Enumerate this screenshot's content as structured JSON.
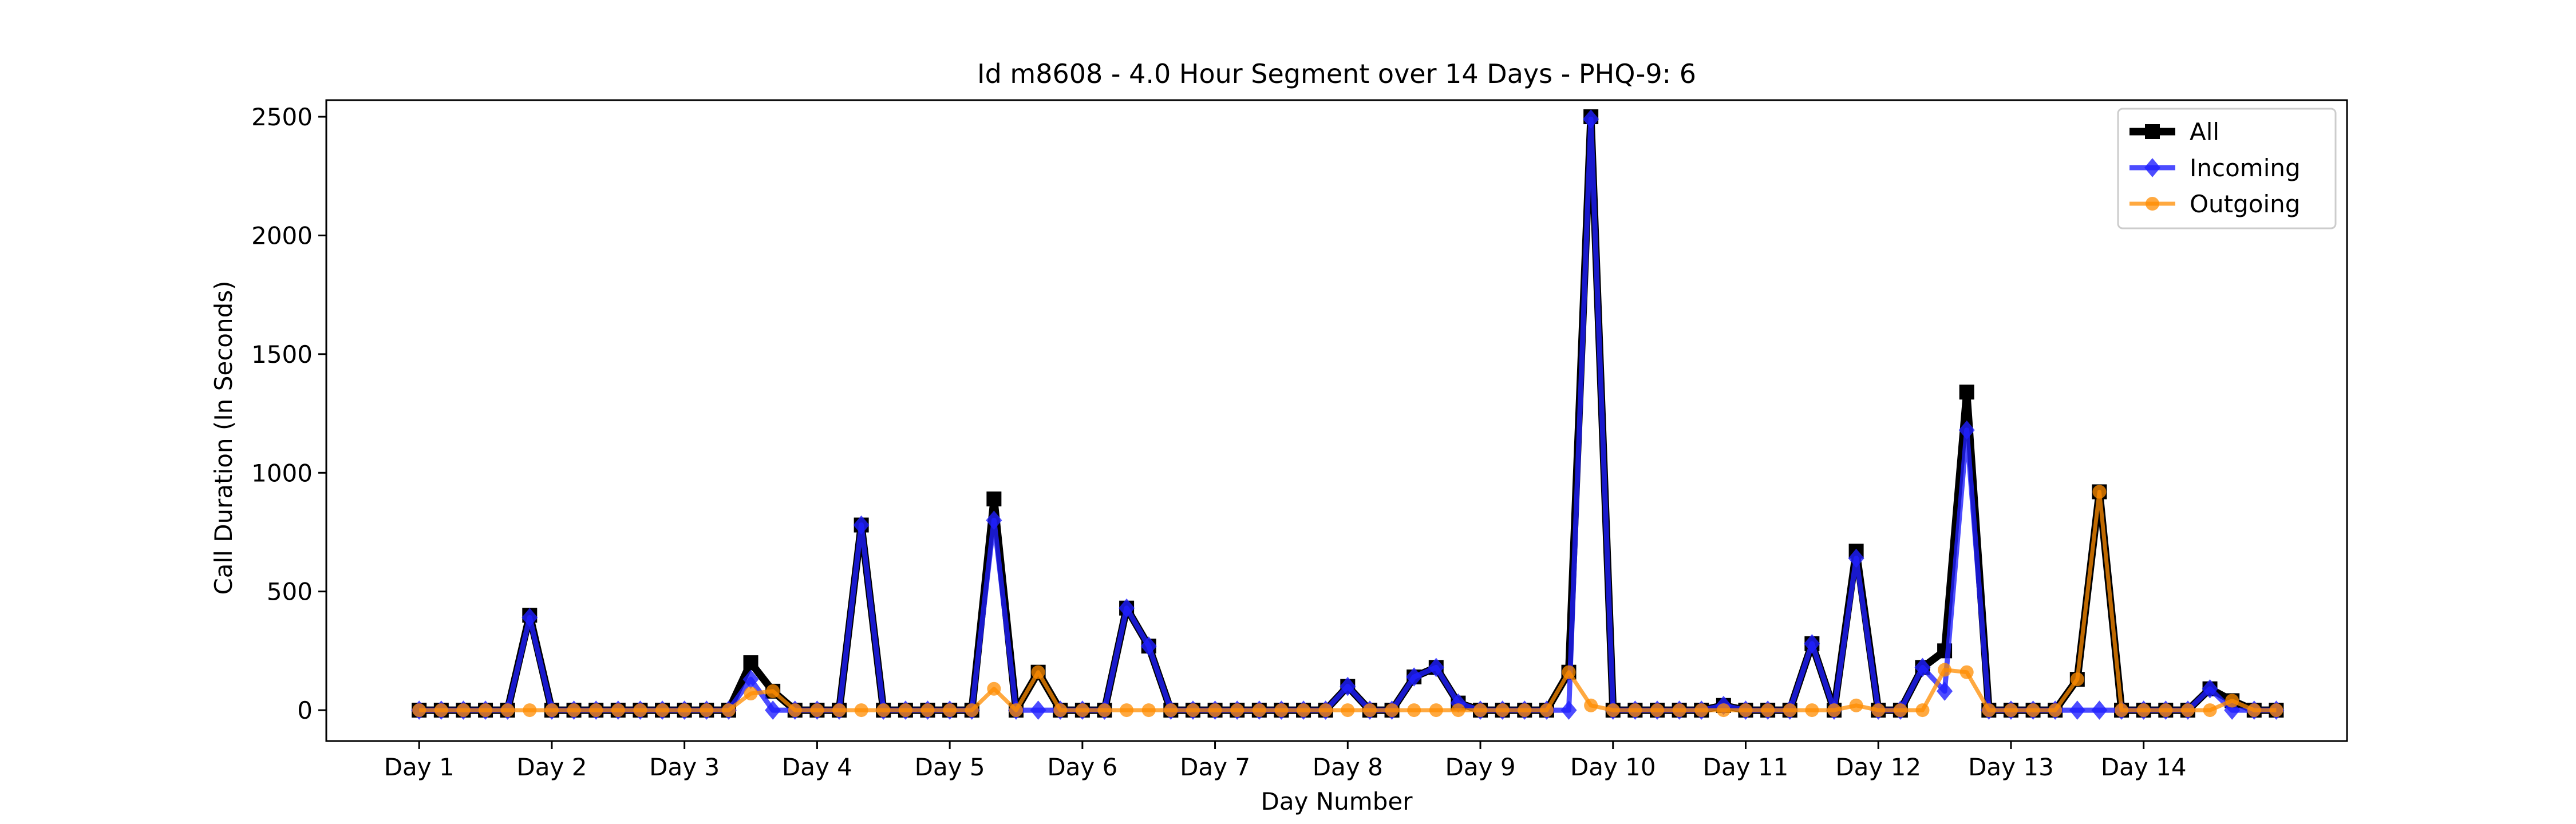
{
  "chart_data": {
    "type": "line",
    "title": "Id m8608 - 4.0 Hour Segment over 14 Days - PHQ-9: 6",
    "xlabel": "Day Number",
    "ylabel": "Call Duration (In Seconds)",
    "ylim": [
      -130,
      2570
    ],
    "xlim": [
      -4.2,
      87.2
    ],
    "yticks": [
      0,
      500,
      1000,
      1500,
      2000,
      2500
    ],
    "xticks": [
      {
        "pos": 0,
        "label": "Day 1"
      },
      {
        "pos": 6,
        "label": "Day 2"
      },
      {
        "pos": 12,
        "label": "Day 3"
      },
      {
        "pos": 18,
        "label": "Day 4"
      },
      {
        "pos": 24,
        "label": "Day 5"
      },
      {
        "pos": 30,
        "label": "Day 6"
      },
      {
        "pos": 36,
        "label": "Day 7"
      },
      {
        "pos": 42,
        "label": "Day 8"
      },
      {
        "pos": 48,
        "label": "Day 9"
      },
      {
        "pos": 54,
        "label": "Day 10"
      },
      {
        "pos": 60,
        "label": "Day 11"
      },
      {
        "pos": 66,
        "label": "Day 12"
      },
      {
        "pos": 72,
        "label": "Day 13"
      },
      {
        "pos": 78,
        "label": "Day 14"
      }
    ],
    "grid": false,
    "legend_position": "top-right",
    "series": [
      {
        "name": "All",
        "color": "#000000",
        "marker": "square",
        "values": [
          0,
          0,
          0,
          0,
          0,
          400,
          0,
          0,
          0,
          0,
          0,
          0,
          0,
          0,
          0,
          200,
          80,
          0,
          0,
          0,
          780,
          0,
          0,
          0,
          0,
          0,
          890,
          0,
          160,
          0,
          0,
          0,
          430,
          270,
          0,
          0,
          0,
          0,
          0,
          0,
          0,
          0,
          100,
          0,
          0,
          140,
          180,
          30,
          0,
          0,
          0,
          0,
          160,
          2500,
          0,
          0,
          0,
          0,
          0,
          20,
          0,
          0,
          0,
          280,
          0,
          670,
          0,
          0,
          180,
          250,
          1340,
          0,
          0,
          0,
          0,
          130,
          920,
          0,
          0,
          0,
          0,
          90,
          40,
          0,
          0
        ]
      },
      {
        "name": "Incoming",
        "color": "#1f1fff",
        "marker": "diamond",
        "values": [
          0,
          0,
          0,
          0,
          0,
          390,
          0,
          0,
          0,
          0,
          0,
          0,
          0,
          0,
          0,
          130,
          0,
          0,
          0,
          0,
          780,
          0,
          0,
          0,
          0,
          0,
          800,
          0,
          0,
          0,
          0,
          0,
          430,
          270,
          0,
          0,
          0,
          0,
          0,
          0,
          0,
          0,
          100,
          0,
          0,
          140,
          180,
          30,
          0,
          0,
          0,
          0,
          0,
          2490,
          0,
          0,
          0,
          0,
          0,
          20,
          0,
          0,
          0,
          280,
          0,
          640,
          0,
          0,
          180,
          80,
          1180,
          0,
          0,
          0,
          0,
          0,
          0,
          0,
          0,
          0,
          0,
          90,
          0,
          0,
          0
        ]
      },
      {
        "name": "Outgoing",
        "color": "#ff8c00",
        "marker": "circle",
        "values": [
          0,
          0,
          0,
          0,
          0,
          0,
          0,
          0,
          0,
          0,
          0,
          0,
          0,
          0,
          0,
          70,
          80,
          0,
          0,
          0,
          0,
          0,
          0,
          0,
          0,
          0,
          90,
          0,
          160,
          0,
          0,
          0,
          0,
          0,
          0,
          0,
          0,
          0,
          0,
          0,
          0,
          0,
          0,
          0,
          0,
          0,
          0,
          0,
          0,
          0,
          0,
          0,
          160,
          20,
          0,
          0,
          0,
          0,
          0,
          0,
          0,
          0,
          0,
          0,
          0,
          20,
          0,
          0,
          0,
          170,
          160,
          0,
          0,
          0,
          0,
          130,
          920,
          0,
          0,
          0,
          0,
          0,
          40,
          0,
          0
        ]
      }
    ]
  }
}
